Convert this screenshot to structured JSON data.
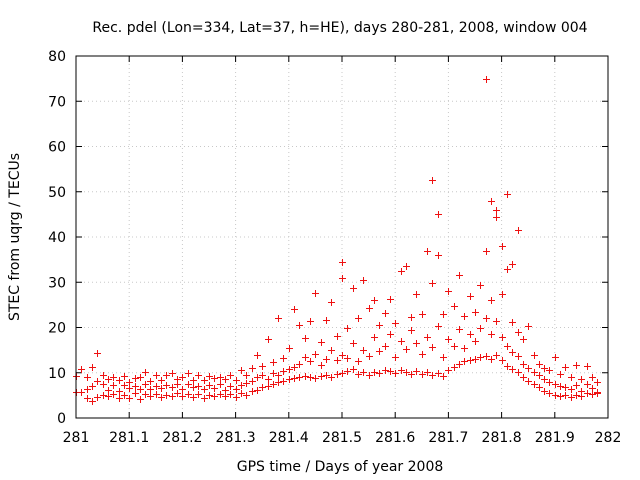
{
  "chart_data": {
    "type": "scatter",
    "title": "Rec. pdel (Lon=334, Lat=37, h=HE), days 280-281, 2008, window 004",
    "xlabel": "GPS time / Days of year 2008",
    "ylabel": "STEC from uqrg / TECUs",
    "xlim": [
      281,
      282
    ],
    "ylim": [
      0,
      80
    ],
    "xticks": [
      "281",
      "281.1",
      "281.2",
      "281.3",
      "281.4",
      "281.5",
      "281.6",
      "281.7",
      "281.8",
      "281.9",
      "282"
    ],
    "yticks": [
      "0",
      "10",
      "20",
      "30",
      "40",
      "50",
      "60",
      "70",
      "80"
    ],
    "grid": true,
    "marker": "+",
    "color": "#ee1111",
    "series": [
      {
        "name": "STEC",
        "points": [
          [
            281.0,
            5.7
          ],
          [
            281.0,
            9.2
          ],
          [
            281.01,
            10.8
          ],
          [
            281.01,
            5.7
          ],
          [
            281.02,
            4.5
          ],
          [
            281.02,
            6.5
          ],
          [
            281.02,
            9.0
          ],
          [
            281.03,
            11.2
          ],
          [
            281.03,
            3.8
          ],
          [
            281.03,
            7.0
          ],
          [
            281.04,
            14.4
          ],
          [
            281.04,
            4.6
          ],
          [
            281.04,
            8.2
          ],
          [
            281.05,
            5.1
          ],
          [
            281.05,
            7.5
          ],
          [
            281.05,
            9.6
          ],
          [
            281.06,
            4.8
          ],
          [
            281.06,
            6.2
          ],
          [
            281.06,
            8.6
          ],
          [
            281.07,
            5.3
          ],
          [
            281.07,
            7.2
          ],
          [
            281.07,
            9.0
          ],
          [
            281.08,
            4.4
          ],
          [
            281.08,
            6.0
          ],
          [
            281.08,
            8.4
          ],
          [
            281.09,
            5.0
          ],
          [
            281.09,
            7.4
          ],
          [
            281.09,
            9.3
          ],
          [
            281.1,
            4.5
          ],
          [
            281.1,
            6.6
          ],
          [
            281.1,
            8.0
          ],
          [
            281.11,
            5.6
          ],
          [
            281.11,
            7.1
          ],
          [
            281.11,
            8.9
          ],
          [
            281.12,
            4.3
          ],
          [
            281.12,
            6.3
          ],
          [
            281.12,
            9.1
          ],
          [
            281.13,
            5.2
          ],
          [
            281.13,
            7.5
          ],
          [
            281.13,
            10.2
          ],
          [
            281.14,
            4.8
          ],
          [
            281.14,
            6.5
          ],
          [
            281.14,
            8.1
          ],
          [
            281.15,
            5.4
          ],
          [
            281.15,
            7.0
          ],
          [
            281.15,
            9.6
          ],
          [
            281.16,
            4.6
          ],
          [
            281.16,
            6.7
          ],
          [
            281.16,
            8.3
          ],
          [
            281.17,
            5.1
          ],
          [
            281.17,
            7.3
          ],
          [
            281.17,
            9.5
          ],
          [
            281.18,
            4.9
          ],
          [
            281.18,
            6.8
          ],
          [
            281.18,
            10.0
          ],
          [
            281.19,
            5.5
          ],
          [
            281.19,
            7.6
          ],
          [
            281.19,
            8.6
          ],
          [
            281.2,
            4.8
          ],
          [
            281.2,
            6.3
          ],
          [
            281.2,
            9.0
          ],
          [
            281.21,
            5.3
          ],
          [
            281.21,
            7.5
          ],
          [
            281.21,
            10.0
          ],
          [
            281.22,
            4.7
          ],
          [
            281.22,
            6.9
          ],
          [
            281.22,
            8.5
          ],
          [
            281.23,
            5.2
          ],
          [
            281.23,
            7.1
          ],
          [
            281.23,
            9.4
          ],
          [
            281.24,
            4.5
          ],
          [
            281.24,
            6.4
          ],
          [
            281.24,
            8.3
          ],
          [
            281.25,
            5.0
          ],
          [
            281.25,
            7.3
          ],
          [
            281.25,
            9.2
          ],
          [
            281.26,
            4.8
          ],
          [
            281.26,
            6.7
          ],
          [
            281.26,
            8.8
          ],
          [
            281.27,
            5.4
          ],
          [
            281.27,
            7.6
          ],
          [
            281.27,
            9.1
          ],
          [
            281.28,
            4.9
          ],
          [
            281.28,
            6.2
          ],
          [
            281.28,
            8.7
          ],
          [
            281.29,
            5.3
          ],
          [
            281.29,
            7.0
          ],
          [
            281.29,
            9.4
          ],
          [
            281.3,
            4.6
          ],
          [
            281.3,
            6.5
          ],
          [
            281.3,
            8.3
          ],
          [
            281.31,
            5.6
          ],
          [
            281.31,
            7.2
          ],
          [
            281.31,
            10.5
          ],
          [
            281.32,
            5.1
          ],
          [
            281.32,
            7.8
          ],
          [
            281.32,
            9.6
          ],
          [
            281.33,
            5.9
          ],
          [
            281.33,
            8.2
          ],
          [
            281.33,
            11.0
          ],
          [
            281.34,
            6.2
          ],
          [
            281.34,
            9.0
          ],
          [
            281.34,
            13.9
          ],
          [
            281.35,
            6.8
          ],
          [
            281.35,
            9.5
          ],
          [
            281.35,
            11.6
          ],
          [
            281.36,
            7.0
          ],
          [
            281.36,
            8.7
          ],
          [
            281.36,
            17.5
          ],
          [
            281.37,
            7.5
          ],
          [
            281.37,
            10.0
          ],
          [
            281.37,
            12.3
          ],
          [
            281.38,
            8.0
          ],
          [
            281.38,
            9.6
          ],
          [
            281.38,
            22.0
          ],
          [
            281.39,
            8.2
          ],
          [
            281.39,
            10.4
          ],
          [
            281.39,
            13.2
          ],
          [
            281.4,
            8.6
          ],
          [
            281.4,
            10.8
          ],
          [
            281.4,
            15.5
          ],
          [
            281.41,
            8.8
          ],
          [
            281.41,
            11.3
          ],
          [
            281.41,
            24.0
          ],
          [
            281.42,
            9.0
          ],
          [
            281.42,
            12.0
          ],
          [
            281.42,
            20.5
          ],
          [
            281.43,
            9.2
          ],
          [
            281.43,
            13.5
          ],
          [
            281.43,
            17.6
          ],
          [
            281.44,
            9.0
          ],
          [
            281.44,
            12.5
          ],
          [
            281.44,
            21.4
          ],
          [
            281.45,
            8.8
          ],
          [
            281.45,
            14.2
          ],
          [
            281.45,
            27.7
          ],
          [
            281.46,
            9.3
          ],
          [
            281.46,
            11.8
          ],
          [
            281.46,
            16.8
          ],
          [
            281.47,
            9.6
          ],
          [
            281.47,
            13.0
          ],
          [
            281.47,
            21.6
          ],
          [
            281.48,
            9.1
          ],
          [
            281.48,
            15.0
          ],
          [
            281.48,
            25.6
          ],
          [
            281.49,
            9.8
          ],
          [
            281.49,
            12.8
          ],
          [
            281.49,
            18.2
          ],
          [
            281.5,
            10.0
          ],
          [
            281.5,
            14.0
          ],
          [
            281.5,
            31.0
          ],
          [
            281.5,
            34.5
          ],
          [
            281.51,
            10.4
          ],
          [
            281.51,
            13.3
          ],
          [
            281.51,
            20.0
          ],
          [
            281.52,
            10.8
          ],
          [
            281.52,
            16.6
          ],
          [
            281.52,
            28.7
          ],
          [
            281.53,
            9.8
          ],
          [
            281.53,
            12.5
          ],
          [
            281.53,
            22.0
          ],
          [
            281.54,
            10.1
          ],
          [
            281.54,
            15.0
          ],
          [
            281.54,
            30.5
          ],
          [
            281.55,
            9.5
          ],
          [
            281.55,
            13.6
          ],
          [
            281.55,
            24.4
          ],
          [
            281.56,
            10.2
          ],
          [
            281.56,
            17.8
          ],
          [
            281.56,
            26.0
          ],
          [
            281.57,
            9.9
          ],
          [
            281.57,
            14.8
          ],
          [
            281.57,
            20.6
          ],
          [
            281.58,
            10.7
          ],
          [
            281.58,
            16.0
          ],
          [
            281.58,
            23.3
          ],
          [
            281.59,
            10.3
          ],
          [
            281.59,
            18.5
          ],
          [
            281.59,
            26.3
          ],
          [
            281.6,
            10.0
          ],
          [
            281.6,
            13.5
          ],
          [
            281.6,
            21.0
          ],
          [
            281.61,
            10.5
          ],
          [
            281.61,
            17.0
          ],
          [
            281.61,
            32.5
          ],
          [
            281.62,
            10.1
          ],
          [
            281.62,
            15.2
          ],
          [
            281.62,
            33.5
          ],
          [
            281.63,
            9.8
          ],
          [
            281.63,
            19.5
          ],
          [
            281.63,
            22.3
          ],
          [
            281.64,
            10.4
          ],
          [
            281.64,
            16.5
          ],
          [
            281.64,
            27.5
          ],
          [
            281.65,
            9.7
          ],
          [
            281.65,
            14.2
          ],
          [
            281.65,
            23.0
          ],
          [
            281.66,
            10.2
          ],
          [
            281.66,
            18.0
          ],
          [
            281.66,
            37.0
          ],
          [
            281.67,
            9.6
          ],
          [
            281.67,
            15.8
          ],
          [
            281.67,
            29.8
          ],
          [
            281.67,
            52.5
          ],
          [
            281.68,
            10.0
          ],
          [
            281.68,
            20.3
          ],
          [
            281.68,
            36.0
          ],
          [
            281.68,
            45.0
          ],
          [
            281.69,
            9.3
          ],
          [
            281.69,
            13.5
          ],
          [
            281.69,
            23.0
          ],
          [
            281.7,
            10.6
          ],
          [
            281.7,
            17.5
          ],
          [
            281.7,
            28.0
          ],
          [
            281.71,
            11.3
          ],
          [
            281.71,
            16.0
          ],
          [
            281.71,
            24.8
          ],
          [
            281.72,
            12.0
          ],
          [
            281.72,
            19.6
          ],
          [
            281.72,
            31.5
          ],
          [
            281.73,
            12.5
          ],
          [
            281.73,
            15.5
          ],
          [
            281.73,
            22.5
          ],
          [
            281.74,
            12.8
          ],
          [
            281.74,
            18.6
          ],
          [
            281.74,
            27.0
          ],
          [
            281.75,
            13.0
          ],
          [
            281.75,
            17.0
          ],
          [
            281.75,
            23.5
          ],
          [
            281.76,
            13.4
          ],
          [
            281.76,
            20.0
          ],
          [
            281.76,
            29.5
          ],
          [
            281.77,
            13.6
          ],
          [
            281.77,
            22.0
          ],
          [
            281.77,
            37.0
          ],
          [
            281.77,
            75.0
          ],
          [
            281.78,
            13.0
          ],
          [
            281.78,
            18.5
          ],
          [
            281.78,
            26.0
          ],
          [
            281.78,
            48.0
          ],
          [
            281.79,
            14.0
          ],
          [
            281.79,
            21.5
          ],
          [
            281.79,
            44.5
          ],
          [
            281.79,
            46.0
          ],
          [
            281.8,
            12.8
          ],
          [
            281.8,
            17.8
          ],
          [
            281.8,
            27.5
          ],
          [
            281.8,
            38.0
          ],
          [
            281.81,
            11.5
          ],
          [
            281.81,
            16.0
          ],
          [
            281.81,
            33.0
          ],
          [
            281.81,
            49.5
          ],
          [
            281.82,
            10.8
          ],
          [
            281.82,
            14.5
          ],
          [
            281.82,
            21.2
          ],
          [
            281.82,
            34.0
          ],
          [
            281.83,
            10.2
          ],
          [
            281.83,
            13.6
          ],
          [
            281.83,
            19.0
          ],
          [
            281.83,
            41.5
          ],
          [
            281.84,
            9.0
          ],
          [
            281.84,
            12.0
          ],
          [
            281.84,
            17.5
          ],
          [
            281.85,
            8.2
          ],
          [
            281.85,
            11.0
          ],
          [
            281.85,
            20.3
          ],
          [
            281.86,
            7.5
          ],
          [
            281.86,
            10.2
          ],
          [
            281.86,
            14.0
          ],
          [
            281.87,
            6.8
          ],
          [
            281.87,
            9.5
          ],
          [
            281.87,
            12.0
          ],
          [
            281.88,
            6.0
          ],
          [
            281.88,
            8.6
          ],
          [
            281.88,
            11.0
          ],
          [
            281.89,
            5.5
          ],
          [
            281.89,
            8.0
          ],
          [
            281.89,
            10.5
          ],
          [
            281.9,
            5.0
          ],
          [
            281.9,
            7.6
          ],
          [
            281.9,
            13.5
          ],
          [
            281.91,
            4.8
          ],
          [
            281.91,
            7.0
          ],
          [
            281.91,
            9.8
          ],
          [
            281.92,
            5.1
          ],
          [
            281.92,
            6.8
          ],
          [
            281.92,
            11.2
          ],
          [
            281.93,
            4.6
          ],
          [
            281.93,
            6.3
          ],
          [
            281.93,
            9.0
          ],
          [
            281.94,
            5.0
          ],
          [
            281.94,
            7.4
          ],
          [
            281.94,
            11.8
          ],
          [
            281.95,
            4.8
          ],
          [
            281.95,
            6.0
          ],
          [
            281.95,
            8.6
          ],
          [
            281.96,
            5.5
          ],
          [
            281.96,
            7.5
          ],
          [
            281.96,
            11.5
          ],
          [
            281.97,
            5.2
          ],
          [
            281.97,
            6.7
          ],
          [
            281.97,
            9.0
          ],
          [
            281.98,
            5.8
          ],
          [
            281.98,
            5.5
          ],
          [
            281.98,
            8.0
          ]
        ]
      }
    ]
  }
}
